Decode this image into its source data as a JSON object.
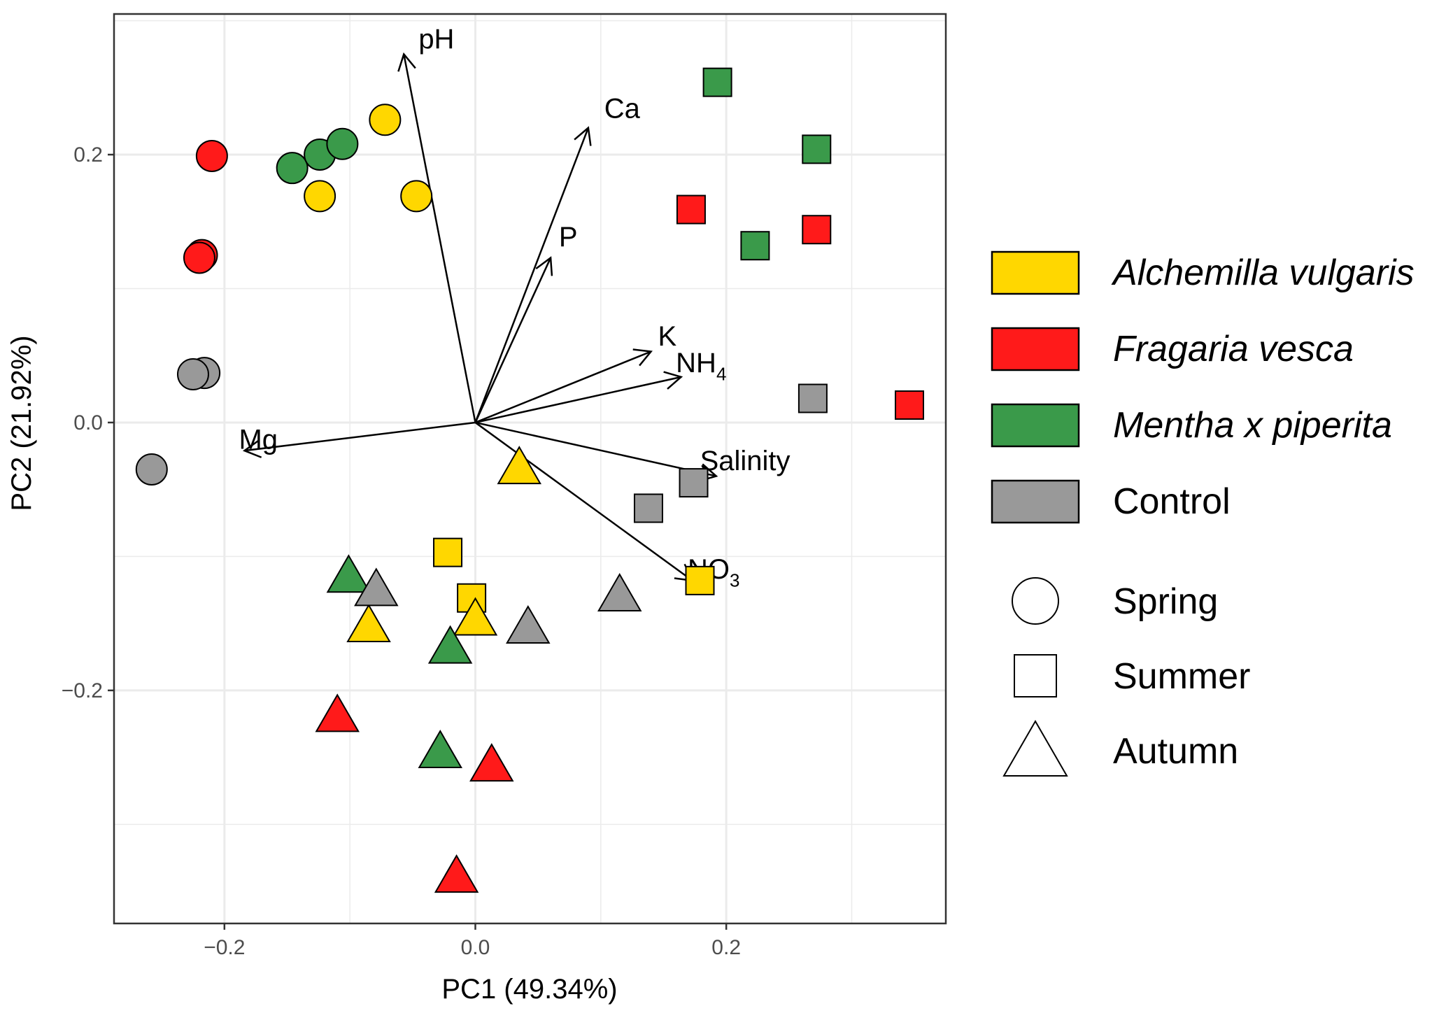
{
  "chart_data": {
    "type": "scatter",
    "subtype": "pca-biplot",
    "title": "",
    "xlabel": "PC1 (49.34%)",
    "ylabel": "PC2 (21.92%)",
    "xlim": [
      -0.288,
      0.375
    ],
    "ylim": [
      -0.374,
      0.305
    ],
    "xticks": [
      {
        "value": -0.2,
        "label": "−0.2"
      },
      {
        "value": 0.0,
        "label": "0.0"
      },
      {
        "value": 0.2,
        "label": "0.2"
      }
    ],
    "yticks": [
      {
        "value": 0.2,
        "label": "0.2"
      },
      {
        "value": 0.0,
        "label": "0.0"
      },
      {
        "value": -0.2,
        "label": "−0.2"
      }
    ],
    "grid": true,
    "legend_position": "right",
    "species": [
      {
        "key": "alchemilla",
        "label": "Alchemilla vulgaris",
        "color": "#FFD700",
        "italic": true
      },
      {
        "key": "fragaria",
        "label": "Fragaria vesca",
        "color": "#FF1A1A",
        "italic": true
      },
      {
        "key": "mentha",
        "label": "Mentha x piperita",
        "color": "#3A9A4A",
        "italic": true
      },
      {
        "key": "control",
        "label": "Control",
        "color": "#999999",
        "italic": false
      }
    ],
    "seasons": [
      {
        "key": "spring",
        "label": "Spring",
        "shape": "circle"
      },
      {
        "key": "summer",
        "label": "Summer",
        "shape": "square"
      },
      {
        "key": "autumn",
        "label": "Autumn",
        "shape": "triangle"
      }
    ],
    "points": [
      {
        "x": -0.21,
        "y": 0.199,
        "species": "fragaria",
        "season": "spring"
      },
      {
        "x": -0.218,
        "y": 0.125,
        "species": "fragaria",
        "season": "spring"
      },
      {
        "x": -0.22,
        "y": 0.123,
        "species": "fragaria",
        "season": "spring"
      },
      {
        "x": -0.146,
        "y": 0.19,
        "species": "mentha",
        "season": "spring"
      },
      {
        "x": -0.124,
        "y": 0.2,
        "species": "mentha",
        "season": "spring"
      },
      {
        "x": -0.106,
        "y": 0.208,
        "species": "mentha",
        "season": "spring"
      },
      {
        "x": -0.072,
        "y": 0.226,
        "species": "alchemilla",
        "season": "spring"
      },
      {
        "x": -0.124,
        "y": 0.169,
        "species": "alchemilla",
        "season": "spring"
      },
      {
        "x": -0.047,
        "y": 0.169,
        "species": "alchemilla",
        "season": "spring"
      },
      {
        "x": -0.216,
        "y": 0.037,
        "species": "control",
        "season": "spring"
      },
      {
        "x": -0.225,
        "y": 0.036,
        "species": "control",
        "season": "spring"
      },
      {
        "x": -0.258,
        "y": -0.035,
        "species": "control",
        "season": "spring"
      },
      {
        "x": 0.193,
        "y": 0.254,
        "species": "mentha",
        "season": "summer"
      },
      {
        "x": 0.272,
        "y": 0.204,
        "species": "mentha",
        "season": "summer"
      },
      {
        "x": 0.223,
        "y": 0.132,
        "species": "mentha",
        "season": "summer"
      },
      {
        "x": 0.172,
        "y": 0.159,
        "species": "fragaria",
        "season": "summer"
      },
      {
        "x": 0.272,
        "y": 0.144,
        "species": "fragaria",
        "season": "summer"
      },
      {
        "x": 0.346,
        "y": 0.013,
        "species": "fragaria",
        "season": "summer"
      },
      {
        "x": 0.269,
        "y": 0.018,
        "species": "control",
        "season": "summer"
      },
      {
        "x": 0.174,
        "y": -0.045,
        "species": "control",
        "season": "summer"
      },
      {
        "x": 0.138,
        "y": -0.064,
        "species": "control",
        "season": "summer"
      },
      {
        "x": -0.022,
        "y": -0.097,
        "species": "alchemilla",
        "season": "summer"
      },
      {
        "x": -0.003,
        "y": -0.131,
        "species": "alchemilla",
        "season": "summer"
      },
      {
        "x": 0.179,
        "y": -0.118,
        "species": "alchemilla",
        "season": "summer"
      },
      {
        "x": 0.035,
        "y": -0.033,
        "species": "alchemilla",
        "season": "autumn"
      },
      {
        "x": 0.0,
        "y": -0.146,
        "species": "alchemilla",
        "season": "autumn"
      },
      {
        "x": -0.085,
        "y": -0.151,
        "species": "alchemilla",
        "season": "autumn"
      },
      {
        "x": -0.101,
        "y": -0.114,
        "species": "mentha",
        "season": "autumn"
      },
      {
        "x": -0.02,
        "y": -0.167,
        "species": "mentha",
        "season": "autumn"
      },
      {
        "x": -0.028,
        "y": -0.245,
        "species": "mentha",
        "season": "autumn"
      },
      {
        "x": -0.079,
        "y": -0.124,
        "species": "control",
        "season": "autumn"
      },
      {
        "x": 0.042,
        "y": -0.152,
        "species": "control",
        "season": "autumn"
      },
      {
        "x": 0.115,
        "y": -0.128,
        "species": "control",
        "season": "autumn"
      },
      {
        "x": -0.11,
        "y": -0.218,
        "species": "fragaria",
        "season": "autumn"
      },
      {
        "x": 0.013,
        "y": -0.255,
        "species": "fragaria",
        "season": "autumn"
      },
      {
        "x": -0.015,
        "y": -0.338,
        "species": "fragaria",
        "season": "autumn"
      }
    ],
    "loadings": [
      {
        "name": "pH",
        "x": -0.057,
        "y": 0.275,
        "label_x": -0.031,
        "label_y": 0.285
      },
      {
        "name": "Ca",
        "x": 0.09,
        "y": 0.22,
        "label_x": 0.117,
        "label_y": 0.233
      },
      {
        "name": "P",
        "x": 0.06,
        "y": 0.123,
        "label_x": 0.074,
        "label_y": 0.137
      },
      {
        "name": "K",
        "x": 0.14,
        "y": 0.053,
        "label_x": 0.153,
        "label_y": 0.063
      },
      {
        "name": "NH",
        "sub": "4",
        "x": 0.164,
        "y": 0.034,
        "label_x": 0.18,
        "label_y": 0.043
      },
      {
        "name": "Mg",
        "x": -0.184,
        "y": -0.021,
        "label_x": -0.173,
        "label_y": -0.014
      },
      {
        "name": "Salinity",
        "x": 0.192,
        "y": -0.04,
        "label_x": 0.215,
        "label_y": -0.03
      },
      {
        "name": "NO",
        "sub": "3",
        "x": 0.173,
        "y": -0.118,
        "label_x": 0.19,
        "label_y": -0.111
      }
    ]
  }
}
